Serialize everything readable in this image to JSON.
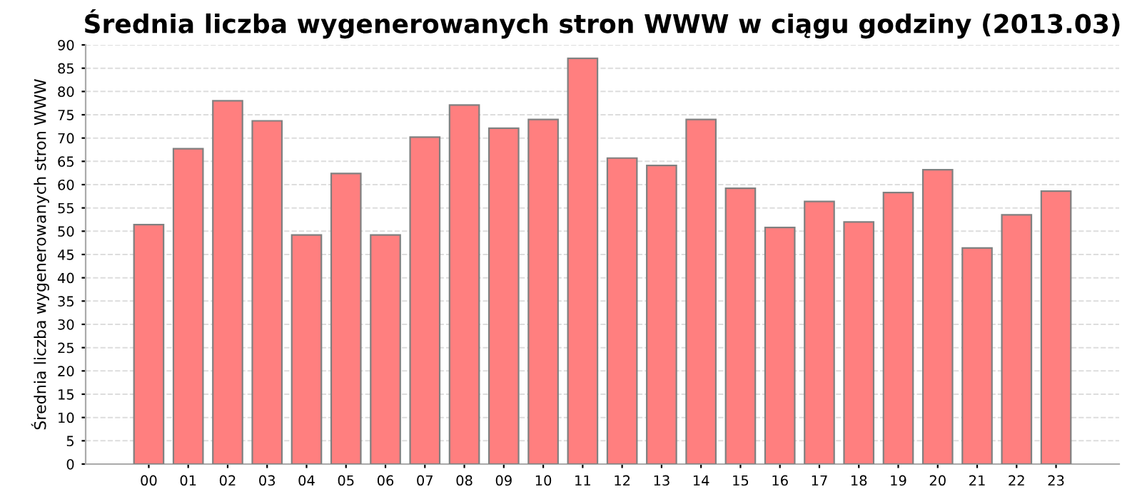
{
  "chart_data": {
    "type": "bar",
    "title": "Średnia liczba wygenerowanych stron WWW w ciągu godziny (2013.03)",
    "ylabel": "Średnia liczba wygenerowanych stron WWW",
    "categories": [
      "00",
      "01",
      "02",
      "03",
      "04",
      "05",
      "06",
      "07",
      "08",
      "09",
      "10",
      "11",
      "12",
      "13",
      "14",
      "15",
      "16",
      "17",
      "18",
      "19",
      "20",
      "21",
      "22",
      "23"
    ],
    "values": [
      51.4,
      67.7,
      78.0,
      73.7,
      49.2,
      62.4,
      49.2,
      70.2,
      77.1,
      72.1,
      74.0,
      87.1,
      65.7,
      64.1,
      74.0,
      59.2,
      50.8,
      56.4,
      52.0,
      58.3,
      63.2,
      46.4,
      53.5,
      58.6
    ],
    "color": "#ff7f7f",
    "ylim": [
      0,
      90
    ],
    "yticks": [
      0,
      5,
      10,
      15,
      20,
      25,
      30,
      35,
      40,
      45,
      50,
      55,
      60,
      65,
      70,
      75,
      80,
      85,
      90
    ],
    "grid": "y",
    "legend": false
  }
}
